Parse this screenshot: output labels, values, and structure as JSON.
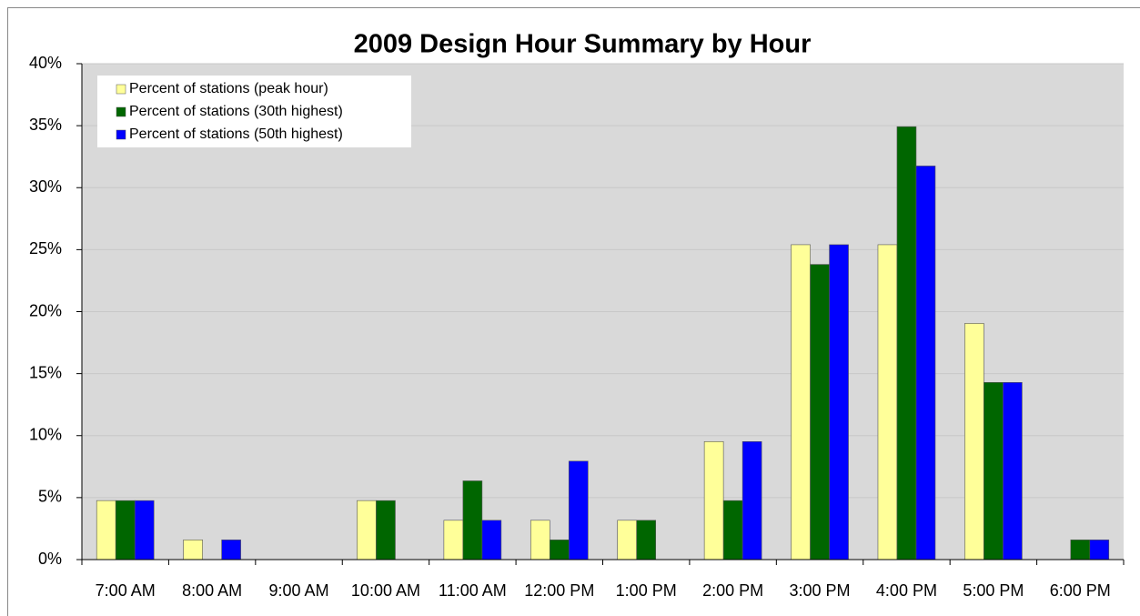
{
  "chart_data": {
    "type": "bar",
    "title": "2009 Design Hour Summary by Hour",
    "categories": [
      "7:00 AM",
      "8:00 AM",
      "9:00 AM",
      "10:00 AM",
      "11:00 AM",
      "12:00 PM",
      "1:00 PM",
      "2:00 PM",
      "3:00 PM",
      "4:00 PM",
      "5:00 PM",
      "6:00 PM"
    ],
    "series": [
      {
        "name": "Percent of stations (peak hour)",
        "color": "#ffff99",
        "values": [
          4.76,
          1.59,
          0,
          4.76,
          3.17,
          3.17,
          3.17,
          9.52,
          25.4,
          25.4,
          19.05,
          0
        ]
      },
      {
        "name": "Percent of stations (30th highest)",
        "color": "#006600",
        "values": [
          4.76,
          0,
          0,
          4.76,
          6.35,
          1.59,
          3.17,
          4.76,
          23.81,
          34.92,
          14.29,
          1.59
        ]
      },
      {
        "name": "Percent of stations (50th highest)",
        "color": "#0000ff",
        "values": [
          4.76,
          1.59,
          0,
          0,
          3.17,
          7.94,
          0,
          9.52,
          25.4,
          31.75,
          14.29,
          1.59
        ]
      }
    ],
    "ylim": [
      0,
      40
    ],
    "yticks": [
      {
        "value": 0,
        "label": "0%"
      },
      {
        "value": 5,
        "label": "5%"
      },
      {
        "value": 10,
        "label": "10%"
      },
      {
        "value": 15,
        "label": "15%"
      },
      {
        "value": 20,
        "label": "20%"
      },
      {
        "value": 25,
        "label": "25%"
      },
      {
        "value": 30,
        "label": "30%"
      },
      {
        "value": 35,
        "label": "35%"
      },
      {
        "value": 40,
        "label": "40%"
      }
    ],
    "grid": true,
    "legend": "top-left"
  }
}
